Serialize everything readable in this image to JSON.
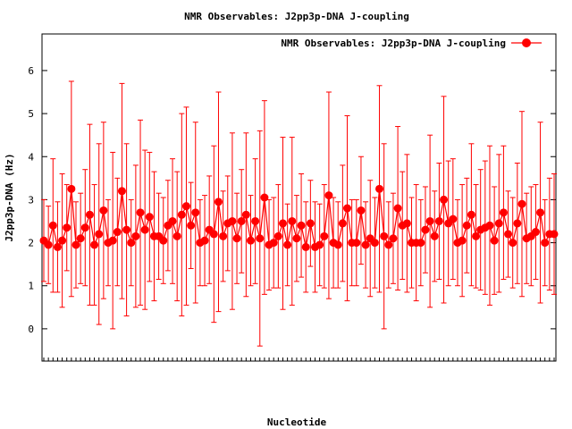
{
  "chart_data": {
    "type": "line",
    "title": "NMR Observables: J2pp3p-DNA J-coupling",
    "xlabel": "Nucleotide",
    "ylabel": "J2pp3p-DNA (Hz)",
    "ylim": [
      -0.75,
      6.85
    ],
    "yticks": [
      0,
      1,
      2,
      3,
      4,
      5,
      6
    ],
    "grid": false,
    "legend_position": "top-right",
    "series": [
      {
        "name": "NMR Observables: J2pp3p-DNA J-coupling",
        "color": "#ff0000",
        "marker": "filled-circle",
        "error_bars": true,
        "y": [
          2.05,
          1.95,
          2.4,
          1.9,
          2.05,
          2.35,
          3.25,
          1.95,
          2.1,
          2.35,
          2.65,
          1.95,
          2.2,
          2.75,
          2.0,
          2.05,
          2.25,
          3.2,
          2.3,
          2.0,
          2.15,
          2.7,
          2.3,
          2.6,
          2.15,
          2.15,
          2.05,
          2.4,
          2.5,
          2.15,
          2.65,
          2.85,
          2.4,
          2.7,
          2.0,
          2.05,
          2.3,
          2.2,
          2.95,
          2.15,
          2.45,
          2.5,
          2.1,
          2.5,
          2.65,
          2.05,
          2.5,
          2.1,
          3.05,
          1.95,
          2.0,
          2.15,
          2.45,
          1.95,
          2.5,
          2.1,
          2.4,
          1.9,
          2.45,
          1.9,
          1.95,
          2.15,
          3.1,
          2.0,
          1.95,
          2.45,
          2.8,
          2.0,
          2.0,
          2.75,
          1.95,
          2.1,
          2.0,
          3.25,
          2.15,
          1.95,
          2.1,
          2.8,
          2.4,
          2.45,
          2.0,
          2.0,
          2.0,
          2.3,
          2.5,
          2.15,
          2.5,
          3.0,
          2.45,
          2.55,
          2.0,
          2.05,
          2.4,
          2.65,
          2.15,
          2.3,
          2.35,
          2.4,
          2.05,
          2.45,
          2.7,
          2.2,
          2.0,
          2.45,
          2.9,
          2.1,
          2.15,
          2.25,
          2.7,
          2.0,
          2.2,
          2.2
        ],
        "err": [
          0.95,
          0.9,
          1.55,
          1.05,
          1.55,
          1.0,
          2.5,
          1.0,
          1.05,
          1.35,
          2.1,
          1.4,
          2.1,
          2.05,
          1.0,
          2.05,
          1.25,
          2.5,
          2.0,
          1.0,
          1.65,
          2.15,
          1.85,
          1.5,
          1.5,
          1.0,
          1.0,
          1.05,
          1.45,
          1.5,
          2.35,
          2.3,
          1.0,
          2.1,
          1.0,
          1.05,
          1.25,
          2.05,
          2.55,
          1.05,
          1.1,
          2.05,
          1.05,
          1.2,
          1.9,
          1.05,
          1.45,
          2.5,
          2.25,
          1.05,
          1.05,
          1.2,
          2.0,
          0.95,
          1.95,
          1.0,
          1.2,
          1.05,
          1.0,
          1.05,
          0.95,
          1.2,
          2.4,
          1.05,
          1.0,
          1.35,
          2.15,
          1.0,
          1.0,
          1.25,
          1.0,
          1.35,
          1.05,
          2.4,
          2.15,
          1.0,
          1.05,
          1.9,
          1.25,
          1.6,
          1.05,
          1.35,
          1.0,
          1.0,
          2.0,
          1.05,
          1.35,
          2.4,
          1.45,
          1.4,
          1.0,
          1.3,
          1.1,
          1.65,
          1.2,
          1.4,
          1.55,
          1.85,
          1.25,
          1.6,
          1.55,
          1.0,
          1.05,
          1.4,
          2.15,
          1.05,
          1.15,
          1.1,
          2.1,
          1.0,
          1.3,
          1.4
        ]
      }
    ]
  }
}
